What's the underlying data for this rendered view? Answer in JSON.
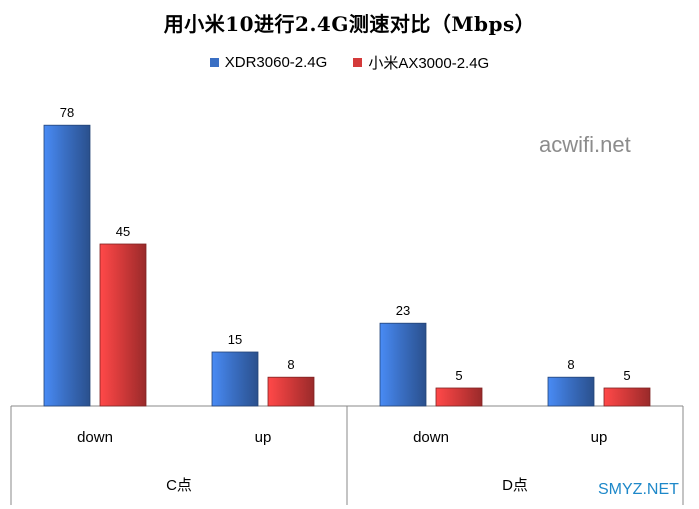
{
  "chart_data": {
    "type": "bar",
    "title": "用小米10进行2.4G测速对比（Mbps）",
    "groups": [
      {
        "label": "C点",
        "categories": [
          "down",
          "up"
        ]
      },
      {
        "label": "D点",
        "categories": [
          "down",
          "up"
        ]
      }
    ],
    "categories": [
      "down",
      "up",
      "down",
      "up"
    ],
    "series": [
      {
        "name": "XDR3060-2.4G",
        "color": "#3a6fc4",
        "values": [
          78,
          15,
          23,
          8
        ]
      },
      {
        "name": "小米AX3000-2.4G",
        "color": "#d43a3a",
        "values": [
          45,
          8,
          5,
          5
        ]
      }
    ],
    "ylim": [
      0,
      85
    ],
    "legend_position": "top",
    "grid": false
  },
  "watermark": "acwifi.net",
  "source_mark": "SMYZ.NET"
}
